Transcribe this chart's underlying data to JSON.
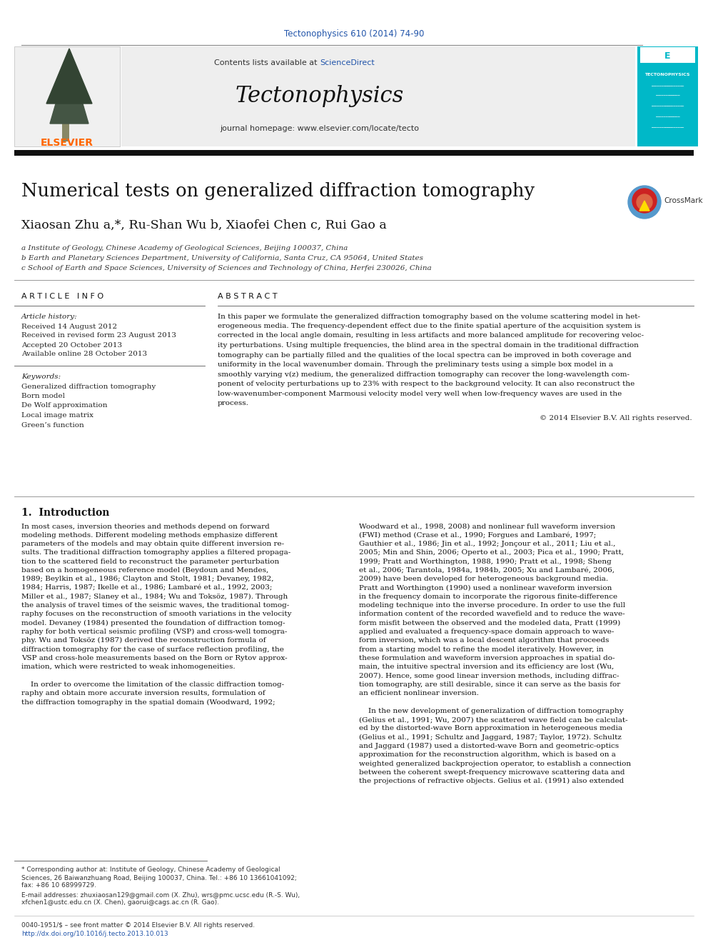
{
  "page_bg": "#ffffff",
  "header_link_color": "#2255aa",
  "header_link_text": "Tectonophysics 610 (2014) 74-90",
  "journal_name": "Tectonophysics",
  "journal_homepage": "journal homepage: www.elsevier.com/locate/tecto",
  "contents_text": "Contents lists available at ",
  "sciencedirect_text": "ScienceDirect",
  "tecto_box_bg": "#00b8c8",
  "article_title": "Numerical tests on generalized diffraction tomography",
  "authors": "Xiaosan Zhu a,*, Ru-Shan Wu b, Xiaofei Chen c, Rui Gao a",
  "affil_a": "a Institute of Geology, Chinese Academy of Geological Sciences, Beijing 100037, China",
  "affil_b": "b Earth and Planetary Sciences Department, University of California, Santa Cruz, CA 95064, United States",
  "affil_c": "c School of Earth and Space Sciences, University of Sciences and Technology of China, Herfei 230026, China",
  "article_info_header": "A R T I C L E   I N F O",
  "abstract_header": "A B S T R A C T",
  "article_history_label": "Article history:",
  "received1": "Received 14 August 2012",
  "received2": "Received in revised form 23 August 2013",
  "accepted": "Accepted 20 October 2013",
  "available": "Available online 28 October 2013",
  "keywords_label": "Keywords:",
  "keywords": [
    "Generalized diffraction tomography",
    "Born model",
    "De Wolf approximation",
    "Local image matrix",
    "Green’s function"
  ],
  "copyright": "© 2014 Elsevier B.V. All rights reserved.",
  "intro_header": "1.  Introduction",
  "footnote_line1": "* Corresponding author at: Institute of Geology, Chinese Academy of Geological",
  "footnote_line2": "Sciences, 26 Baiwanzhuang Road, Beijing 100037, China. Tel.: +86 10 13661041092;",
  "footnote_line3": "fax: +86 10 68999729.",
  "footnote_email": "E-mail addresses: zhuxiaosan129@gmail.com (X. Zhu), wrs@pmc.ucsc.edu (R.-S. Wu),",
  "footnote_email2": "xfchen1@ustc.edu.cn (X. Chen), gaorui@cags.ac.cn (R. Gao).",
  "footer_issn": "0040-1951/$ – see front matter © 2014 Elsevier B.V. All rights reserved.",
  "footer_doi": "http://dx.doi.org/10.1016/j.tecto.2013.10.013",
  "elsevier_color": "#FF6600",
  "link_color": "#2255aa",
  "abstract_lines": [
    "In this paper we formulate the generalized diffraction tomography based on the volume scattering model in het-",
    "erogeneous media. The frequency-dependent effect due to the finite spatial aperture of the acquisition system is",
    "corrected in the local angle domain, resulting in less artifacts and more balanced amplitude for recovering veloc-",
    "ity perturbations. Using multiple frequencies, the blind area in the spectral domain in the traditional diffraction",
    "tomography can be partially filled and the qualities of the local spectra can be improved in both coverage and",
    "uniformity in the local wavenumber domain. Through the preliminary tests using a simple box model in a",
    "smoothly varying v(z) medium, the generalized diffraction tomography can recover the long-wavelength com-",
    "ponent of velocity perturbations up to 23% with respect to the background velocity. It can also reconstruct the",
    "low-wavenumber-component Marmousi velocity model very well when low-frequency waves are used in the",
    "process."
  ],
  "col1_lines": [
    "In most cases, inversion theories and methods depend on forward",
    "modeling methods. Different modeling methods emphasize different",
    "parameters of the models and may obtain quite different inversion re-",
    "sults. The traditional diffraction tomography applies a filtered propaga-",
    "tion to the scattered field to reconstruct the parameter perturbation",
    "based on a homogeneous reference model (Beydoun and Mendes,",
    "1989; Beylkin et al., 1986; Clayton and Stolt, 1981; Devaney, 1982,",
    "1984; Harris, 1987; Ikelle et al., 1986; Lambaré et al., 1992, 2003;",
    "Miller et al., 1987; Slaney et al., 1984; Wu and Toksöz, 1987). Through",
    "the analysis of travel times of the seismic waves, the traditional tomog-",
    "raphy focuses on the reconstruction of smooth variations in the velocity",
    "model. Devaney (1984) presented the foundation of diffraction tomog-",
    "raphy for both vertical seismic profiling (VSP) and cross-well tomogra-",
    "phy. Wu and Toksöz (1987) derived the reconstruction formula of",
    "diffraction tomography for the case of surface reflection profiling, the",
    "VSP and cross-hole measurements based on the Born or Rytov approx-",
    "imation, which were restricted to weak inhomogeneities.",
    "",
    "    In order to overcome the limitation of the classic diffraction tomog-",
    "raphy and obtain more accurate inversion results, formulation of",
    "the diffraction tomography in the spatial domain (Woodward, 1992;"
  ],
  "col2_lines": [
    "Woodward et al., 1998, 2008) and nonlinear full waveform inversion",
    "(FWI) method (Crase et al., 1990; Forgues and Lambaré, 1997;",
    "Gauthier et al., 1986; Jin et al., 1992; Jonçour et al., 2011; Liu et al.,",
    "2005; Min and Shin, 2006; Operto et al., 2003; Pica et al., 1990; Pratt,",
    "1999; Pratt and Worthington, 1988, 1990; Pratt et al., 1998; Sheng",
    "et al., 2006; Tarantola, 1984a, 1984b, 2005; Xu and Lambaré, 2006,",
    "2009) have been developed for heterogeneous background media.",
    "Pratt and Worthington (1990) used a nonlinear waveform inversion",
    "in the frequency domain to incorporate the rigorous finite-difference",
    "modeling technique into the inverse procedure. In order to use the full",
    "information content of the recorded wavefield and to reduce the wave-",
    "form misfit between the observed and the modeled data, Pratt (1999)",
    "applied and evaluated a frequency-space domain approach to wave-",
    "form inversion, which was a local descent algorithm that proceeds",
    "from a starting model to refine the model iteratively. However, in",
    "these formulation and waveform inversion approaches in spatial do-",
    "main, the intuitive spectral inversion and its efficiency are lost (Wu,",
    "2007). Hence, some good linear inversion methods, including diffrac-",
    "tion tomography, are still desirable, since it can serve as the basis for",
    "an efficient nonlinear inversion.",
    "",
    "    In the new development of generalization of diffraction tomography",
    "(Gelius et al., 1991; Wu, 2007) the scattered wave field can be calculat-",
    "ed by the distorted-wave Born approximation in heterogeneous media",
    "(Gelius et al., 1991; Schultz and Jaggard, 1987; Taylor, 1972). Schultz",
    "and Jaggard (1987) used a distorted-wave Born and geometric-optics",
    "approximation for the reconstruction algorithm, which is based on a",
    "weighted generalized backprojection operator, to establish a connection",
    "between the coherent swept-frequency microwave scattering data and",
    "the projections of refractive objects. Gelius et al. (1991) also extended"
  ]
}
